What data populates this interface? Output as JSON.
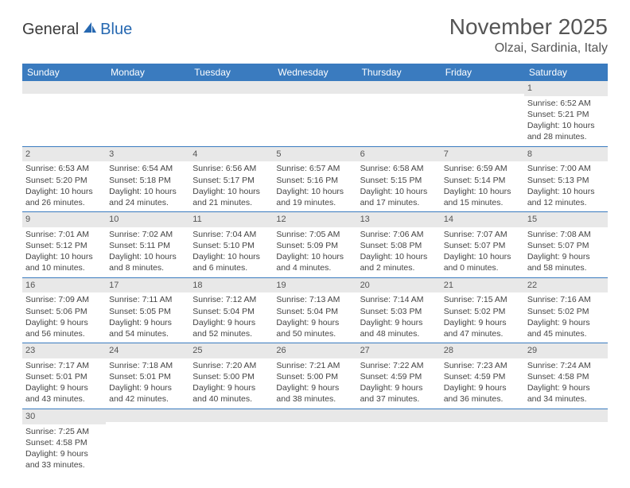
{
  "logo": {
    "word1": "General",
    "word2": "Blue",
    "accent_color": "#2668b1"
  },
  "title": "November 2025",
  "location": "Olzai, Sardinia, Italy",
  "header_bg": "#3a7bbf",
  "daynum_bg": "#e8e8e8",
  "weekdays": [
    "Sunday",
    "Monday",
    "Tuesday",
    "Wednesday",
    "Thursday",
    "Friday",
    "Saturday"
  ],
  "weeks": [
    [
      {
        "n": "",
        "lines": [
          "",
          "",
          "",
          ""
        ]
      },
      {
        "n": "",
        "lines": [
          "",
          "",
          "",
          ""
        ]
      },
      {
        "n": "",
        "lines": [
          "",
          "",
          "",
          ""
        ]
      },
      {
        "n": "",
        "lines": [
          "",
          "",
          "",
          ""
        ]
      },
      {
        "n": "",
        "lines": [
          "",
          "",
          "",
          ""
        ]
      },
      {
        "n": "",
        "lines": [
          "",
          "",
          "",
          ""
        ]
      },
      {
        "n": "1",
        "lines": [
          "Sunrise: 6:52 AM",
          "Sunset: 5:21 PM",
          "Daylight: 10 hours",
          "and 28 minutes."
        ]
      }
    ],
    [
      {
        "n": "2",
        "lines": [
          "Sunrise: 6:53 AM",
          "Sunset: 5:20 PM",
          "Daylight: 10 hours",
          "and 26 minutes."
        ]
      },
      {
        "n": "3",
        "lines": [
          "Sunrise: 6:54 AM",
          "Sunset: 5:18 PM",
          "Daylight: 10 hours",
          "and 24 minutes."
        ]
      },
      {
        "n": "4",
        "lines": [
          "Sunrise: 6:56 AM",
          "Sunset: 5:17 PM",
          "Daylight: 10 hours",
          "and 21 minutes."
        ]
      },
      {
        "n": "5",
        "lines": [
          "Sunrise: 6:57 AM",
          "Sunset: 5:16 PM",
          "Daylight: 10 hours",
          "and 19 minutes."
        ]
      },
      {
        "n": "6",
        "lines": [
          "Sunrise: 6:58 AM",
          "Sunset: 5:15 PM",
          "Daylight: 10 hours",
          "and 17 minutes."
        ]
      },
      {
        "n": "7",
        "lines": [
          "Sunrise: 6:59 AM",
          "Sunset: 5:14 PM",
          "Daylight: 10 hours",
          "and 15 minutes."
        ]
      },
      {
        "n": "8",
        "lines": [
          "Sunrise: 7:00 AM",
          "Sunset: 5:13 PM",
          "Daylight: 10 hours",
          "and 12 minutes."
        ]
      }
    ],
    [
      {
        "n": "9",
        "lines": [
          "Sunrise: 7:01 AM",
          "Sunset: 5:12 PM",
          "Daylight: 10 hours",
          "and 10 minutes."
        ]
      },
      {
        "n": "10",
        "lines": [
          "Sunrise: 7:02 AM",
          "Sunset: 5:11 PM",
          "Daylight: 10 hours",
          "and 8 minutes."
        ]
      },
      {
        "n": "11",
        "lines": [
          "Sunrise: 7:04 AM",
          "Sunset: 5:10 PM",
          "Daylight: 10 hours",
          "and 6 minutes."
        ]
      },
      {
        "n": "12",
        "lines": [
          "Sunrise: 7:05 AM",
          "Sunset: 5:09 PM",
          "Daylight: 10 hours",
          "and 4 minutes."
        ]
      },
      {
        "n": "13",
        "lines": [
          "Sunrise: 7:06 AM",
          "Sunset: 5:08 PM",
          "Daylight: 10 hours",
          "and 2 minutes."
        ]
      },
      {
        "n": "14",
        "lines": [
          "Sunrise: 7:07 AM",
          "Sunset: 5:07 PM",
          "Daylight: 10 hours",
          "and 0 minutes."
        ]
      },
      {
        "n": "15",
        "lines": [
          "Sunrise: 7:08 AM",
          "Sunset: 5:07 PM",
          "Daylight: 9 hours",
          "and 58 minutes."
        ]
      }
    ],
    [
      {
        "n": "16",
        "lines": [
          "Sunrise: 7:09 AM",
          "Sunset: 5:06 PM",
          "Daylight: 9 hours",
          "and 56 minutes."
        ]
      },
      {
        "n": "17",
        "lines": [
          "Sunrise: 7:11 AM",
          "Sunset: 5:05 PM",
          "Daylight: 9 hours",
          "and 54 minutes."
        ]
      },
      {
        "n": "18",
        "lines": [
          "Sunrise: 7:12 AM",
          "Sunset: 5:04 PM",
          "Daylight: 9 hours",
          "and 52 minutes."
        ]
      },
      {
        "n": "19",
        "lines": [
          "Sunrise: 7:13 AM",
          "Sunset: 5:04 PM",
          "Daylight: 9 hours",
          "and 50 minutes."
        ]
      },
      {
        "n": "20",
        "lines": [
          "Sunrise: 7:14 AM",
          "Sunset: 5:03 PM",
          "Daylight: 9 hours",
          "and 48 minutes."
        ]
      },
      {
        "n": "21",
        "lines": [
          "Sunrise: 7:15 AM",
          "Sunset: 5:02 PM",
          "Daylight: 9 hours",
          "and 47 minutes."
        ]
      },
      {
        "n": "22",
        "lines": [
          "Sunrise: 7:16 AM",
          "Sunset: 5:02 PM",
          "Daylight: 9 hours",
          "and 45 minutes."
        ]
      }
    ],
    [
      {
        "n": "23",
        "lines": [
          "Sunrise: 7:17 AM",
          "Sunset: 5:01 PM",
          "Daylight: 9 hours",
          "and 43 minutes."
        ]
      },
      {
        "n": "24",
        "lines": [
          "Sunrise: 7:18 AM",
          "Sunset: 5:01 PM",
          "Daylight: 9 hours",
          "and 42 minutes."
        ]
      },
      {
        "n": "25",
        "lines": [
          "Sunrise: 7:20 AM",
          "Sunset: 5:00 PM",
          "Daylight: 9 hours",
          "and 40 minutes."
        ]
      },
      {
        "n": "26",
        "lines": [
          "Sunrise: 7:21 AM",
          "Sunset: 5:00 PM",
          "Daylight: 9 hours",
          "and 38 minutes."
        ]
      },
      {
        "n": "27",
        "lines": [
          "Sunrise: 7:22 AM",
          "Sunset: 4:59 PM",
          "Daylight: 9 hours",
          "and 37 minutes."
        ]
      },
      {
        "n": "28",
        "lines": [
          "Sunrise: 7:23 AM",
          "Sunset: 4:59 PM",
          "Daylight: 9 hours",
          "and 36 minutes."
        ]
      },
      {
        "n": "29",
        "lines": [
          "Sunrise: 7:24 AM",
          "Sunset: 4:58 PM",
          "Daylight: 9 hours",
          "and 34 minutes."
        ]
      }
    ],
    [
      {
        "n": "30",
        "lines": [
          "Sunrise: 7:25 AM",
          "Sunset: 4:58 PM",
          "Daylight: 9 hours",
          "and 33 minutes."
        ]
      },
      {
        "n": "",
        "lines": [
          "",
          "",
          "",
          ""
        ]
      },
      {
        "n": "",
        "lines": [
          "",
          "",
          "",
          ""
        ]
      },
      {
        "n": "",
        "lines": [
          "",
          "",
          "",
          ""
        ]
      },
      {
        "n": "",
        "lines": [
          "",
          "",
          "",
          ""
        ]
      },
      {
        "n": "",
        "lines": [
          "",
          "",
          "",
          ""
        ]
      },
      {
        "n": "",
        "lines": [
          "",
          "",
          "",
          ""
        ]
      }
    ]
  ]
}
